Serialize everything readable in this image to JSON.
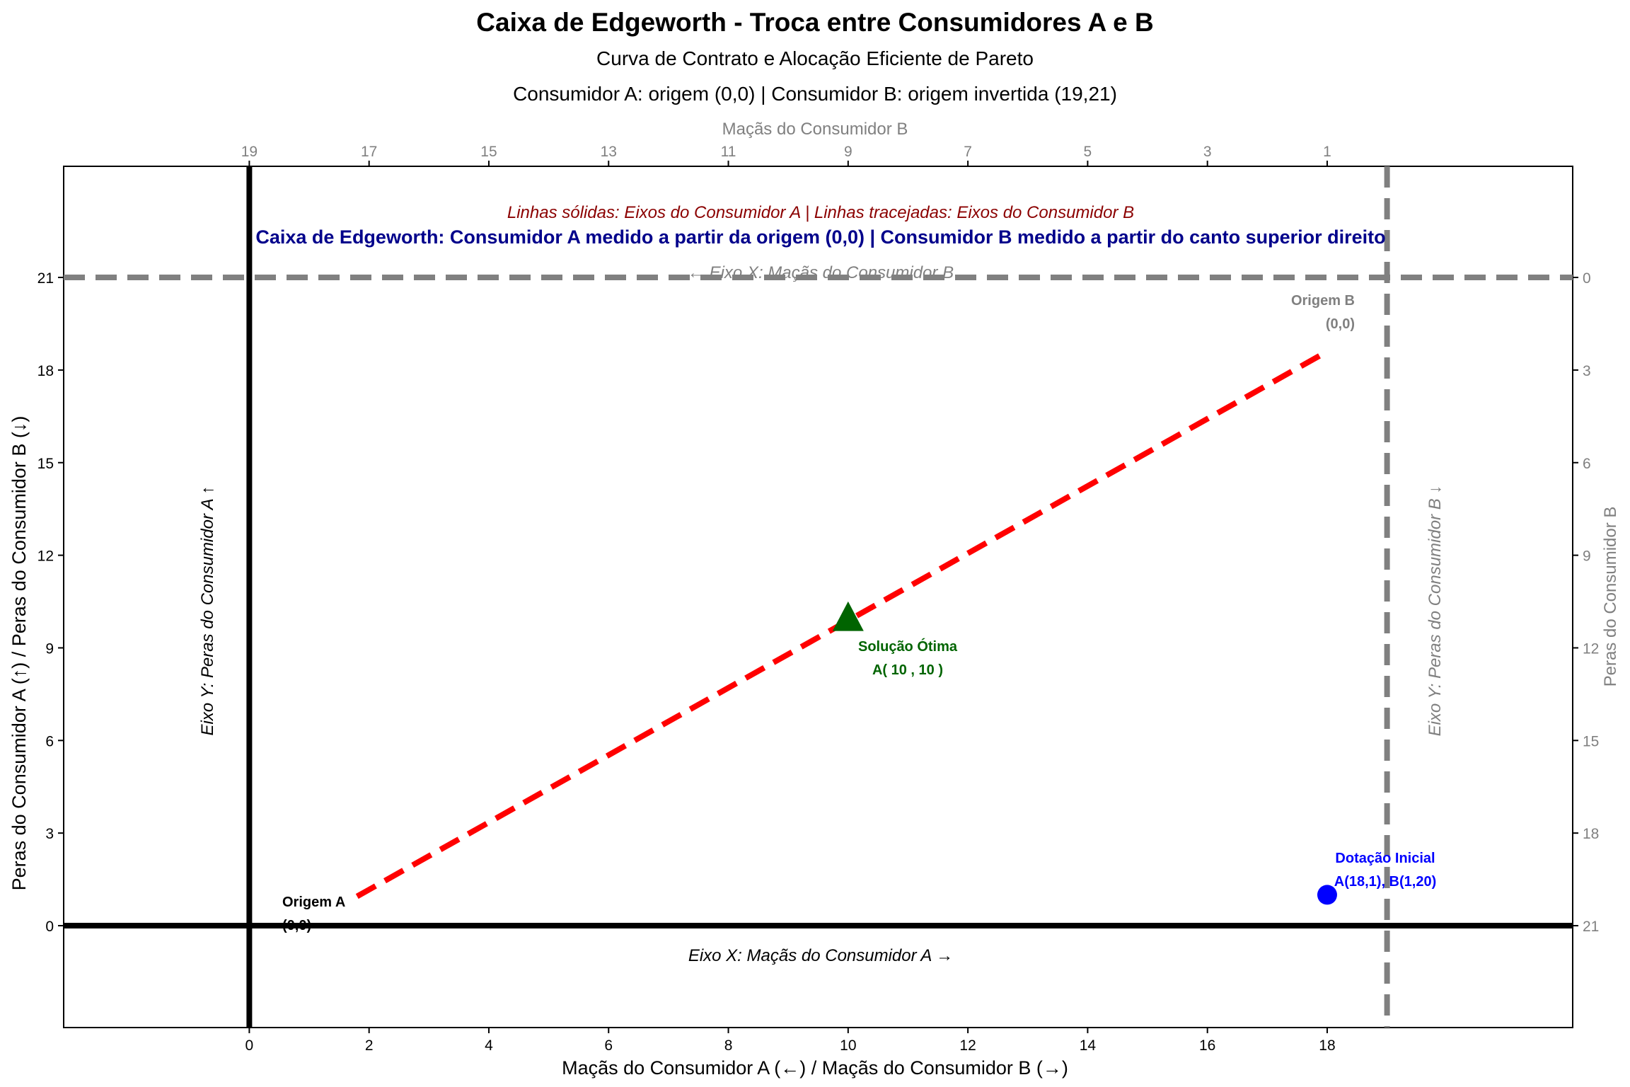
{
  "chart_data": {
    "type": "line",
    "title": "Caixa de Edgeworth - Troca entre Consumidores A e B",
    "subtitle_1": "Curva de Contrato e Alocação Eficiente de Pareto",
    "subtitle_2": "Consumidor A: origem (0,0) | Consumidor B: origem invertida (19,21)",
    "xlabel": "Maçãs do Consumidor A (←) / Maçãs do Consumidor B (→)",
    "ylabel": "Peras do Consumidor A (↑) / Peras do Consumidor B (↓)",
    "top_xlabel": "Maçãs do Consumidor B",
    "right_ylabel": "Peras do Consumidor B",
    "xlim": [
      -3.1,
      22.1
    ],
    "ylim": [
      -3.3,
      24.6
    ],
    "xticks": [
      0,
      2,
      4,
      6,
      8,
      10,
      12,
      14,
      16,
      18
    ],
    "yticks": [
      0,
      3,
      6,
      9,
      12,
      15,
      18,
      21
    ],
    "top_ticks": [
      {
        "x": 0,
        "label": "19"
      },
      {
        "x": 2,
        "label": "17"
      },
      {
        "x": 4,
        "label": "15"
      },
      {
        "x": 6,
        "label": "13"
      },
      {
        "x": 8,
        "label": "11"
      },
      {
        "x": 10,
        "label": "9"
      },
      {
        "x": 12,
        "label": "7"
      },
      {
        "x": 14,
        "label": "5"
      },
      {
        "x": 16,
        "label": "3"
      },
      {
        "x": 18,
        "label": "1"
      }
    ],
    "right_ticks": [
      {
        "y": 21,
        "label": "0"
      },
      {
        "y": 18,
        "label": "3"
      },
      {
        "y": 15,
        "label": "6"
      },
      {
        "y": 12,
        "label": "9"
      },
      {
        "y": 9,
        "label": "12"
      },
      {
        "y": 6,
        "label": "15"
      },
      {
        "y": 3,
        "label": "18"
      },
      {
        "y": 0,
        "label": "21"
      }
    ],
    "box": {
      "width": 19,
      "height": 21
    },
    "series": [
      {
        "name": "",
        "style": "dashed",
        "color": "#ff0000",
        "x": [
          1.8,
          18
        ],
        "y": [
          0.95,
          18.6
        ]
      }
    ],
    "points": [
      {
        "id": "optimal",
        "x": 10,
        "y": 10,
        "marker": "triangle",
        "color": "#006400",
        "label_1": "Solução Ótima",
        "label_2": "A( 10 , 10 )"
      },
      {
        "id": "endowment",
        "x": 18,
        "y": 1,
        "marker": "circle",
        "color": "#0000ff",
        "label_1": "Dotação Inicial",
        "label_2": "A(18,1), B(1,20)"
      }
    ],
    "annotations": {
      "origin_a_1": "Origem A",
      "origin_a_2": "(0,0)",
      "origin_b_1": "Origem B",
      "origin_b_2": "(0,0)",
      "line_legend": "Linhas sólidas: Eixos do Consumidor A | Linhas tracejadas: Eixos do Consumidor B",
      "box_note": "Caixa de Edgeworth: Consumidor A medido a partir da origem (0,0) | Consumidor B medido a partir do canto superior direito",
      "axis_a_x": "Eixo X: Maçãs do Consumidor A →",
      "axis_a_y": "Eixo Y: Peras do Consumidor A ↑",
      "axis_b_x": "← Eixo X: Maçãs do Consumidor B",
      "axis_b_y": "Eixo Y: Peras do Consumidor B ↓"
    },
    "colors": {
      "axis_a": "#000000",
      "axis_b": "#808080",
      "contract_curve": "#ff0000",
      "legend_text": "#8b0000",
      "note_text": "#00008b",
      "optimal": "#006400",
      "endowment": "#0000ff"
    },
    "grid": false
  }
}
